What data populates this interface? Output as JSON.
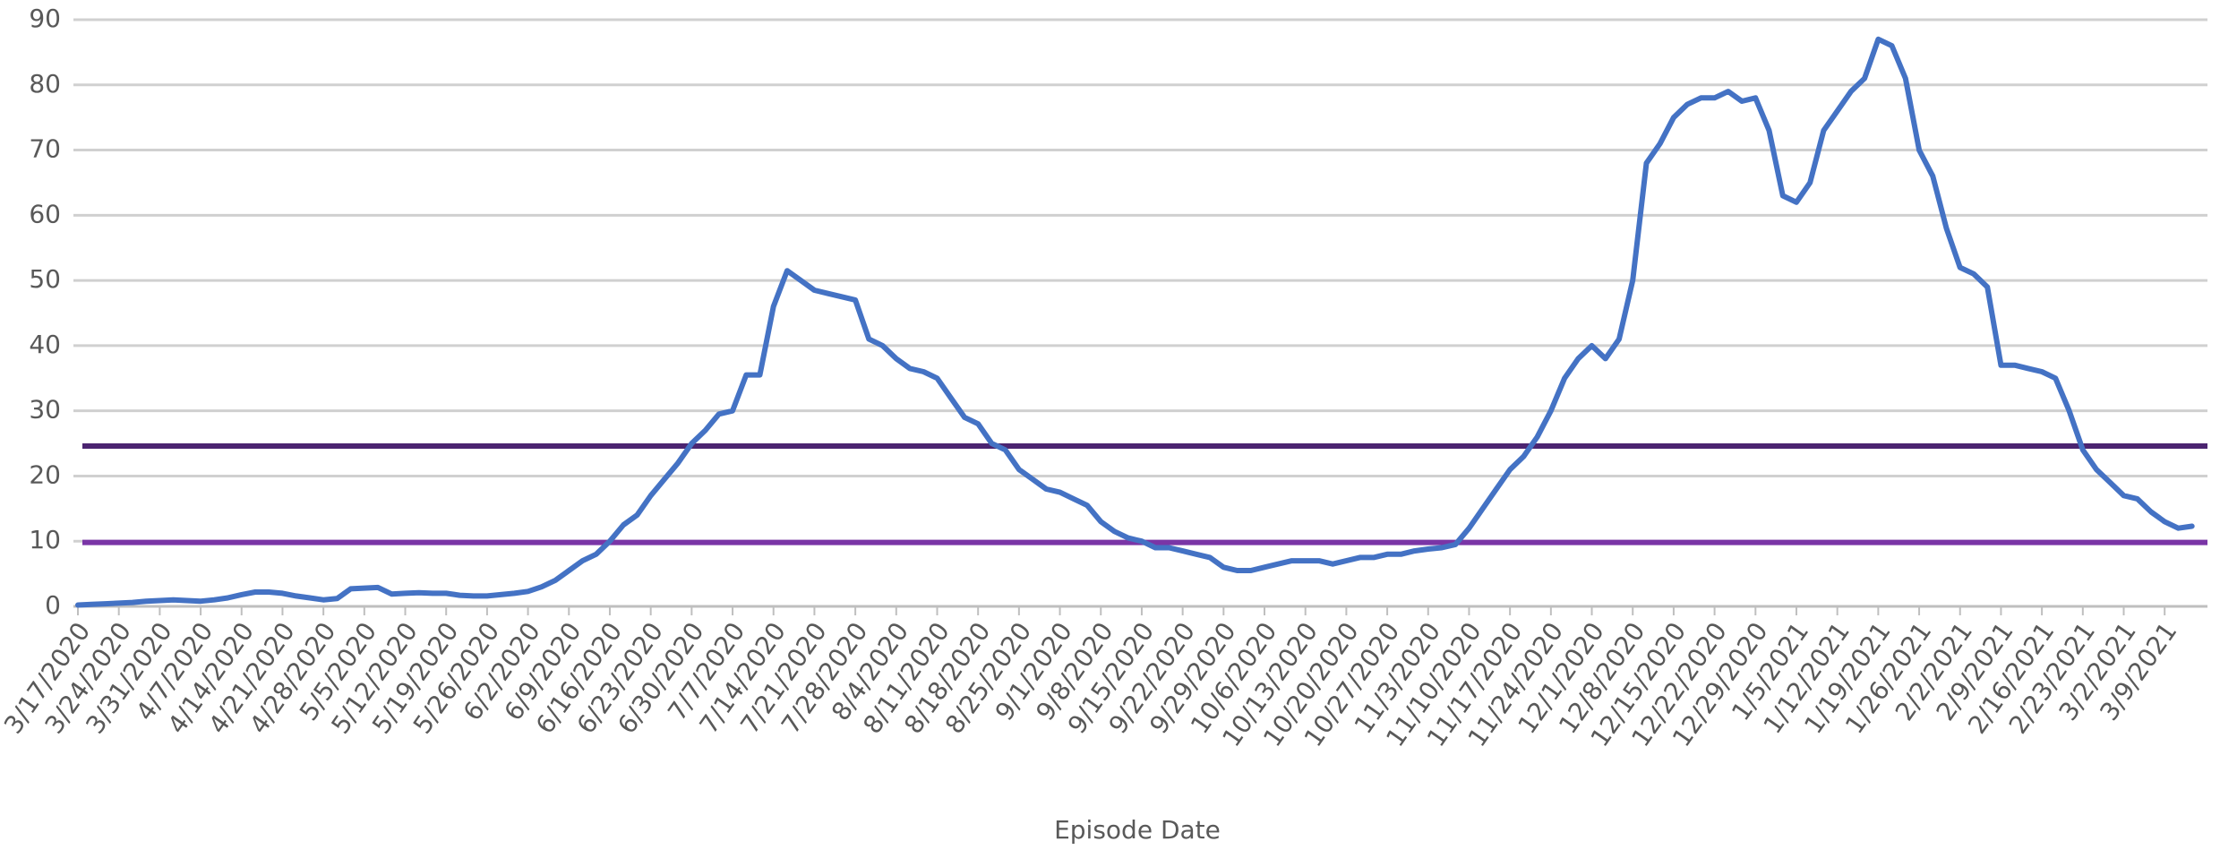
{
  "chart_data": {
    "type": "line",
    "x_label": "Episode Date",
    "categories": [
      "3/17/2020",
      null,
      null,
      "3/24/2020",
      null,
      null,
      "3/31/2020",
      null,
      null,
      "4/7/2020",
      null,
      null,
      "4/14/2020",
      null,
      null,
      "4/21/2020",
      null,
      null,
      "4/28/2020",
      null,
      null,
      "5/5/2020",
      null,
      null,
      "5/12/2020",
      null,
      null,
      "5/19/2020",
      null,
      null,
      "5/26/2020",
      null,
      null,
      "6/2/2020",
      null,
      null,
      "6/9/2020",
      null,
      null,
      "6/16/2020",
      null,
      null,
      "6/23/2020",
      null,
      null,
      "6/30/2020",
      null,
      null,
      "7/7/2020",
      null,
      null,
      "7/14/2020",
      null,
      null,
      "7/21/2020",
      null,
      null,
      "7/28/2020",
      null,
      null,
      "8/4/2020",
      null,
      null,
      "8/11/2020",
      null,
      null,
      "8/18/2020",
      null,
      null,
      "8/25/2020",
      null,
      null,
      "9/1/2020",
      null,
      null,
      "9/8/2020",
      null,
      null,
      "9/15/2020",
      null,
      null,
      "9/22/2020",
      null,
      null,
      "9/29/2020",
      null,
      null,
      "10/6/2020",
      null,
      null,
      "10/13/2020",
      null,
      null,
      "10/20/2020",
      null,
      null,
      "10/27/2020",
      null,
      null,
      "11/3/2020",
      null,
      null,
      "11/10/2020",
      null,
      null,
      "11/17/2020",
      null,
      null,
      "11/24/2020",
      null,
      null,
      "12/1/2020",
      null,
      null,
      "12/8/2020",
      null,
      null,
      "12/15/2020",
      null,
      null,
      "12/22/2020",
      null,
      null,
      "12/29/2020",
      null,
      null,
      "1/5/2021",
      null,
      null,
      "1/12/2021",
      null,
      null,
      "1/19/2021",
      null,
      null,
      "1/26/2021",
      null,
      null,
      "2/2/2021",
      null,
      null,
      "2/9/2021",
      null,
      null,
      "2/16/2021",
      null,
      null,
      "2/23/2021",
      null,
      null,
      "3/2/2021",
      null,
      null,
      "3/9/2021",
      null,
      null
    ],
    "values": [
      0.2,
      0.3,
      0.4,
      0.5,
      0.6,
      0.8,
      0.9,
      1.0,
      0.9,
      0.8,
      1.0,
      1.3,
      1.8,
      2.2,
      2.2,
      2.0,
      1.6,
      1.3,
      1.0,
      1.2,
      2.7,
      2.8,
      2.9,
      1.9,
      2.0,
      2.1,
      2.0,
      2.0,
      1.7,
      1.6,
      1.6,
      1.8,
      2.0,
      2.3,
      3.0,
      4.0,
      5.5,
      7.0,
      8.0,
      10,
      12.5,
      14,
      17,
      19.5,
      22,
      25,
      27,
      29.5,
      30,
      35.5,
      35.5,
      46,
      51.5,
      50,
      48.5,
      48,
      47.5,
      47,
      41,
      40,
      38,
      36.5,
      36,
      35,
      32,
      29,
      28,
      25,
      24,
      21,
      19.5,
      18,
      17.5,
      16.5,
      15.5,
      13,
      11.5,
      10.5,
      10,
      9,
      9,
      8.5,
      8,
      7.5,
      6,
      5.5,
      5.5,
      6,
      6.5,
      7,
      7,
      7,
      6.5,
      7,
      7.5,
      7.5,
      8,
      8,
      8.5,
      8.8,
      9,
      9.5,
      12,
      15,
      18,
      21,
      23,
      26,
      30,
      35,
      38,
      40,
      38,
      41,
      50,
      68,
      71,
      75,
      77,
      78,
      78,
      79,
      77.5,
      78,
      73,
      63,
      62,
      65,
      73,
      76,
      79,
      81,
      87,
      86,
      81,
      70,
      66,
      58,
      52,
      51,
      49,
      37,
      37,
      36.5,
      36,
      35,
      30,
      24,
      21,
      19,
      17,
      16.5,
      14.5,
      13,
      12,
      12.3
    ],
    "color": "#4472c4",
    "reference_lines": [
      {
        "value": 24.6,
        "color": "#4b2470"
      },
      {
        "value": 9.8,
        "color": "#7a35a6"
      }
    ],
    "ylim": [
      0,
      90
    ],
    "yticks": [
      0,
      10,
      20,
      30,
      40,
      50,
      60,
      70,
      80,
      90
    ],
    "grid": true
  }
}
